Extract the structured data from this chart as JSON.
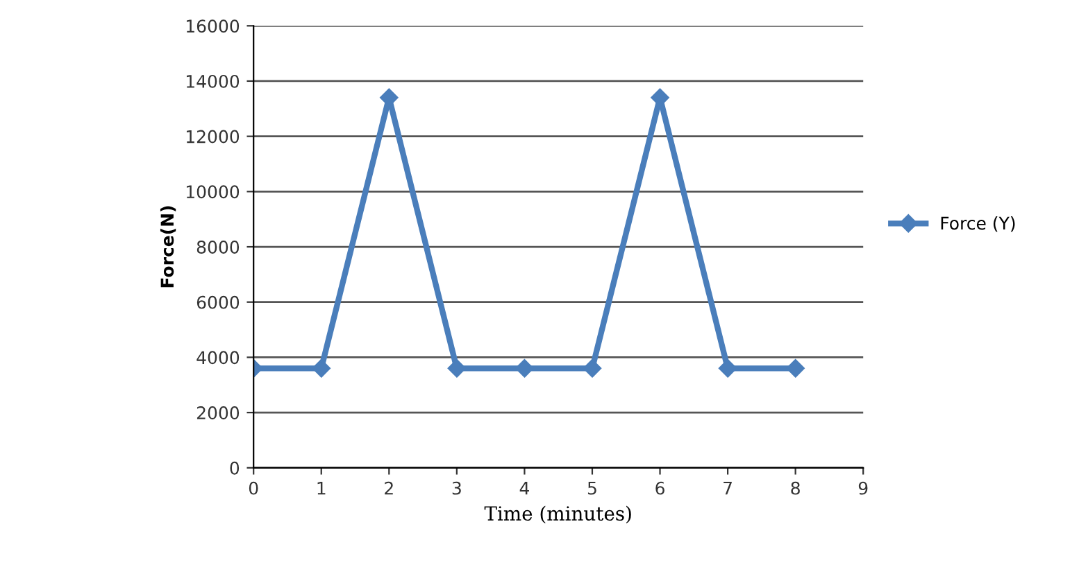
{
  "chart_data": {
    "type": "line",
    "xlabel": "Time (minutes)",
    "ylabel": "Force(N)",
    "x": [
      0,
      1,
      2,
      3,
      4,
      5,
      6,
      7,
      8
    ],
    "series": [
      {
        "name": "Force (Y)",
        "color": "#4a7ebb",
        "values": [
          3600,
          3600,
          13400,
          3600,
          3600,
          3600,
          13400,
          3600,
          3600
        ]
      }
    ],
    "xlim": [
      0,
      9
    ],
    "xticks": [
      0,
      1,
      2,
      3,
      4,
      5,
      6,
      7,
      8,
      9
    ],
    "ylim": [
      0,
      16000
    ],
    "yticks": [
      0,
      2000,
      4000,
      6000,
      8000,
      10000,
      12000,
      14000,
      16000
    ],
    "grid": "y",
    "legend": "right",
    "marker": "diamond",
    "line_style": "solid"
  }
}
